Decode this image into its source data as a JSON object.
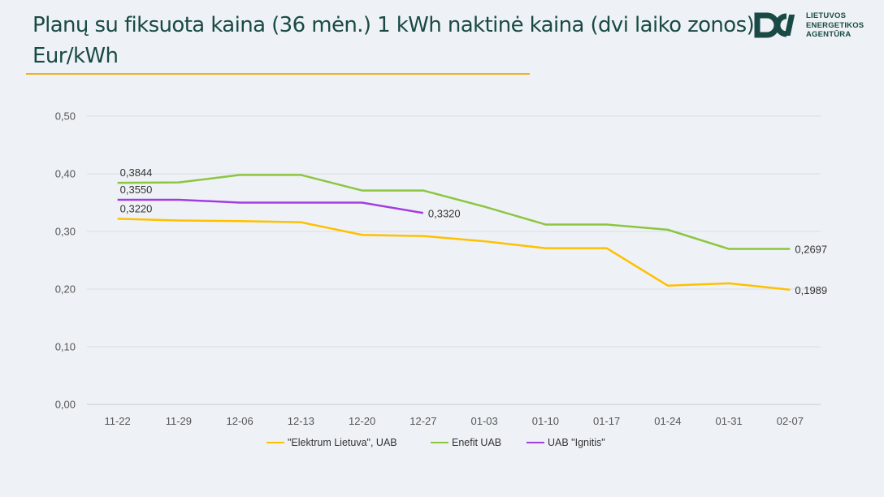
{
  "page": {
    "title": "Planų su fiksuota kaina (36 mėn.) 1 kWh naktinė kaina (dvi laiko zonos), Eur/kWh",
    "title_line1": "Planų su fiksuota kaina (36 mėn.) 1 kWh naktinė kaina (dvi laiko zonos),",
    "title_line2": "Eur/kWh",
    "title_rule_color": "#f0b21c",
    "text_color": "#1a4a45"
  },
  "logo": {
    "line1": "LIETUVOS",
    "line2": "ENERGETIKOS",
    "line3": "AGENTŪRA",
    "icon": "energy-agency-logo-icon",
    "color": "#1a4a45"
  },
  "chart_data": {
    "type": "line",
    "categories": [
      "11-22",
      "11-29",
      "12-06",
      "12-13",
      "12-20",
      "12-27",
      "01-03",
      "01-10",
      "01-17",
      "01-24",
      "01-31",
      "02-07"
    ],
    "ylim": [
      0,
      0.5
    ],
    "yticks": [
      0.0,
      0.1,
      0.2,
      0.3,
      0.4,
      0.5
    ],
    "ytick_labels": [
      "0,00",
      "0,10",
      "0,20",
      "0,30",
      "0,40",
      "0,50"
    ],
    "grid": true,
    "legend_position": "bottom",
    "series": [
      {
        "name": "\"Elektrum Lietuva\", UAB",
        "color": "#ffc000",
        "values": [
          0.322,
          0.319,
          0.318,
          0.316,
          0.294,
          0.292,
          0.283,
          0.271,
          0.271,
          0.206,
          0.21,
          0.1989
        ],
        "labels": [
          {
            "index": 0,
            "text": "0,3220"
          },
          {
            "index": 11,
            "text": "0,1989"
          }
        ]
      },
      {
        "name": "Enefit UAB",
        "color": "#8cc63f",
        "values": [
          0.3844,
          0.385,
          0.398,
          0.398,
          0.371,
          0.371,
          0.343,
          0.312,
          0.312,
          0.303,
          0.2697,
          0.2697
        ],
        "labels": [
          {
            "index": 0,
            "text": "0,3844"
          },
          {
            "index": 11,
            "text": "0,2697"
          }
        ]
      },
      {
        "name": "UAB \"Ignitis\"",
        "color": "#a33de0",
        "values": [
          0.355,
          0.355,
          0.35,
          0.35,
          0.35,
          0.332,
          null,
          null,
          null,
          null,
          null,
          null
        ],
        "labels": [
          {
            "index": 0,
            "text": "0,3550"
          },
          {
            "index": 5,
            "text": "0,3320"
          }
        ]
      }
    ]
  }
}
